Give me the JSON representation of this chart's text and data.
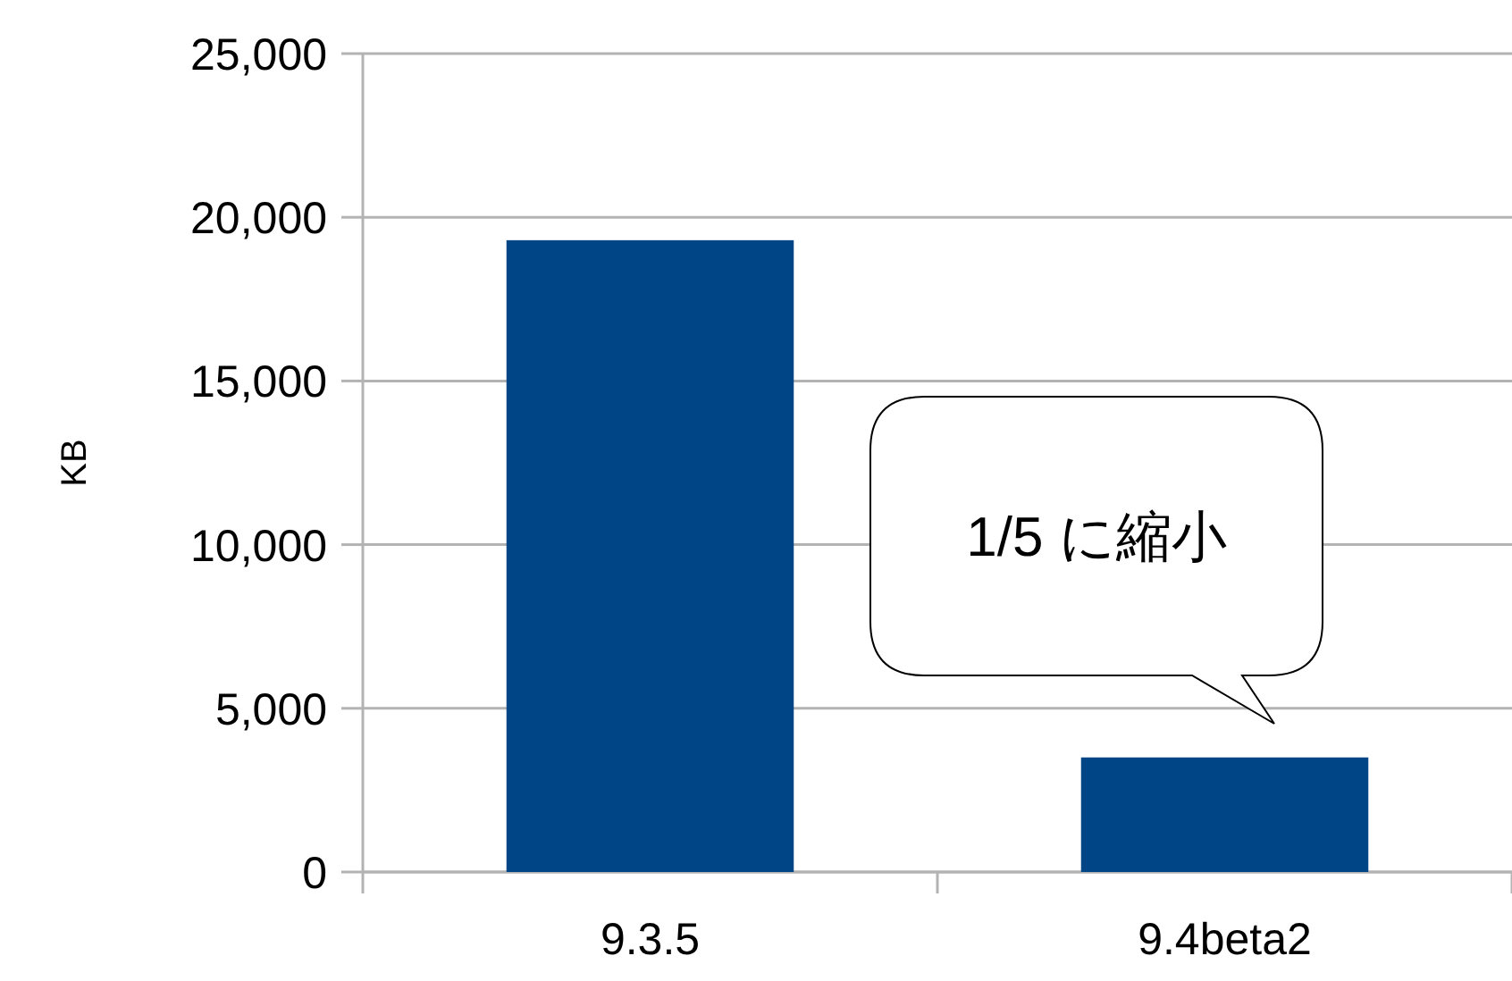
{
  "chart_data": {
    "type": "bar",
    "ylabel": "KB",
    "categories": [
      "9.3.5",
      "9.4beta2"
    ],
    "values": [
      19300,
      3500
    ],
    "color": "#004586",
    "ylim": [
      0,
      25000
    ],
    "yticks": [
      {
        "value": 0,
        "label": "0"
      },
      {
        "value": 5000,
        "label": "5,000"
      },
      {
        "value": 10000,
        "label": "10,000"
      },
      {
        "value": 15000,
        "label": "15,000"
      },
      {
        "value": 20000,
        "label": "20,000"
      },
      {
        "value": 25000,
        "label": "25,000"
      }
    ],
    "grid": "y",
    "annotations": [
      "1/5 に縮小"
    ]
  }
}
